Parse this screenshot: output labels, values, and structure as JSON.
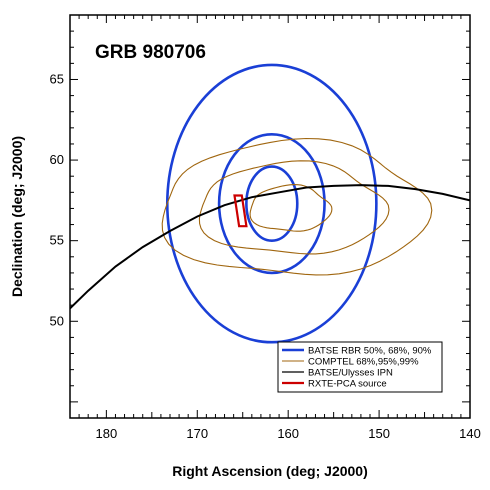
{
  "chart_data": {
    "type": "line",
    "title": "GRB 980706",
    "xlabel": "Right Ascension (deg; J2000)",
    "ylabel": "Declination (deg; J2000)",
    "xlim": [
      184,
      140
    ],
    "ylim": [
      44,
      69
    ],
    "x_reversed": true,
    "x_ticks": [
      180,
      170,
      160,
      150,
      140
    ],
    "y_ticks": [
      50,
      55,
      60,
      65
    ],
    "grid": false,
    "legend_position": "bottom-right",
    "series": [
      {
        "name": "BATSE RBR 50%, 68%, 90%",
        "kind": "ellipses",
        "color": "#1a3fd6",
        "contours": [
          {
            "level": "50%",
            "center": [
              161.8,
              57.3
            ],
            "semi_axis_ra": 2.8,
            "semi_axis_dec": 2.3
          },
          {
            "level": "68%",
            "center": [
              161.8,
              57.3
            ],
            "semi_axis_ra": 5.8,
            "semi_axis_dec": 4.3
          },
          {
            "level": "90%",
            "center": [
              161.8,
              57.3
            ],
            "semi_axis_ra": 11.5,
            "semi_axis_dec": 8.6
          }
        ]
      },
      {
        "name": "COMPTEL 68%,95%,99%",
        "kind": "contours",
        "color": "#a0660f",
        "contours": [
          {
            "level": "68%",
            "center": [
              159.8,
              57.1
            ],
            "semi_axis_ra": 4.4,
            "semi_axis_dec": 1.4
          },
          {
            "level": "95%",
            "center": [
              159.6,
              57.2
            ],
            "semi_axis_ra": 10.2,
            "semi_axis_dec": 2.8
          },
          {
            "level": "99%",
            "center": [
              159.4,
              57.3
            ],
            "semi_axis_ra": 14.5,
            "semi_axis_dec": 4.1
          }
        ]
      },
      {
        "name": "BATSE/Ulysses IPN",
        "kind": "line",
        "color": "#000000",
        "x": [
          184,
          182,
          179,
          176,
          173,
          170,
          167,
          164,
          161,
          158,
          155,
          152,
          149,
          146,
          143,
          140
        ],
        "y": [
          50.8,
          51.9,
          53.4,
          54.6,
          55.6,
          56.5,
          57.2,
          57.7,
          58.0,
          58.3,
          58.4,
          58.45,
          58.4,
          58.2,
          57.9,
          57.5
        ]
      },
      {
        "name": "RXTE-PCA source",
        "kind": "polygon",
        "color": "#cc0000",
        "x": [
          165.9,
          165.1,
          164.6,
          165.4
        ],
        "y": [
          57.8,
          57.8,
          55.9,
          55.9
        ]
      }
    ]
  }
}
